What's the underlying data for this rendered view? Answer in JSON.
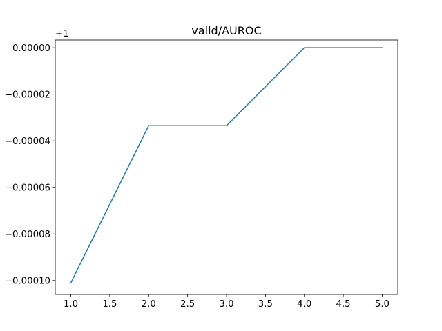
{
  "chart_data": {
    "type": "line",
    "title": "valid/AUROC",
    "xlabel": "",
    "ylabel": "",
    "offset_label": "+1",
    "x": [
      1.0,
      2.0,
      3.0,
      4.0,
      5.0
    ],
    "series": [
      {
        "values": [
          -0.000101,
          -3.35e-05,
          -3.35e-05,
          0.0,
          0.0
        ],
        "color": "#1f77b4"
      }
    ],
    "xlim": [
      0.8,
      5.2
    ],
    "ylim": [
      -0.000106,
      3.3e-06
    ],
    "xticks": [
      1.0,
      1.5,
      2.0,
      2.5,
      3.0,
      3.5,
      4.0,
      4.5,
      5.0
    ],
    "xtick_labels": [
      "1.0",
      "1.5",
      "2.0",
      "2.5",
      "3.0",
      "3.5",
      "4.0",
      "4.5",
      "5.0"
    ],
    "yticks": [
      -0.0001,
      -8e-05,
      -6e-05,
      -4e-05,
      -2e-05,
      0.0
    ],
    "ytick_labels": [
      "−0.00010",
      "−0.00008",
      "−0.00006",
      "−0.00004",
      "−0.00002",
      "0.00000"
    ],
    "grid": false,
    "legend": false
  }
}
